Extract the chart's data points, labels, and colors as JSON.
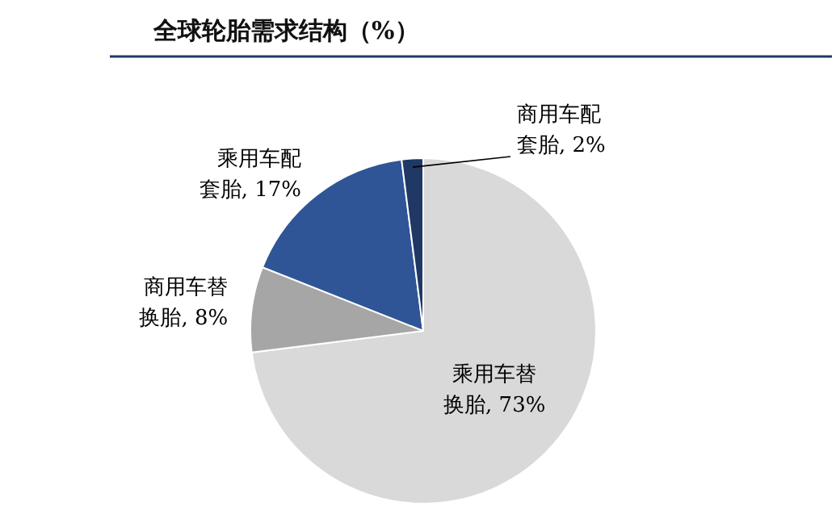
{
  "chart_data": {
    "type": "pie",
    "title": "全球轮胎需求结构（%）",
    "categories": [
      "乘用车替换胎",
      "商用车替换胎",
      "乘用车配套胎",
      "商用车配套胎"
    ],
    "values": [
      73,
      8,
      17,
      2
    ],
    "colors": [
      "#d9d9d9",
      "#a6a6a6",
      "#2f5597",
      "#1f3864"
    ],
    "value_labels": [
      "73%",
      "8%",
      "17%",
      "2%"
    ]
  }
}
